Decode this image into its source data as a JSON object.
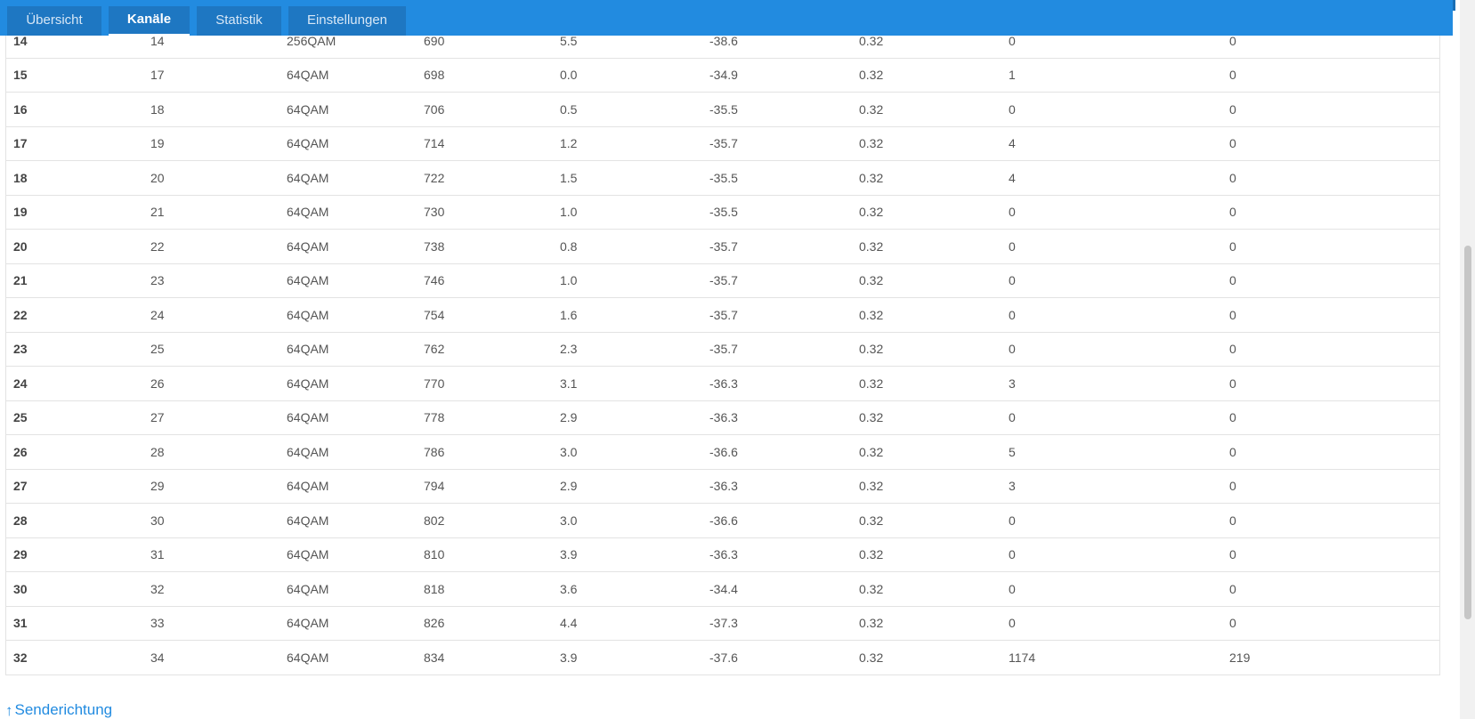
{
  "tabs": [
    {
      "label": "Übersicht",
      "active": false
    },
    {
      "label": "Kanäle",
      "active": true
    },
    {
      "label": "Statistik",
      "active": false
    },
    {
      "label": "Einstellungen",
      "active": false
    }
  ],
  "colors": {
    "topbar": "#228be0",
    "tab_bg": "#1e77c2",
    "link": "#228be0",
    "row_border": "#e3e3e3"
  },
  "channels": [
    [
      "14",
      "14",
      "256QAM",
      "690",
      "5.5",
      "-38.6",
      "0.32",
      "0",
      "0"
    ],
    [
      "15",
      "17",
      "64QAM",
      "698",
      "0.0",
      "-34.9",
      "0.32",
      "1",
      "0"
    ],
    [
      "16",
      "18",
      "64QAM",
      "706",
      "0.5",
      "-35.5",
      "0.32",
      "0",
      "0"
    ],
    [
      "17",
      "19",
      "64QAM",
      "714",
      "1.2",
      "-35.7",
      "0.32",
      "4",
      "0"
    ],
    [
      "18",
      "20",
      "64QAM",
      "722",
      "1.5",
      "-35.5",
      "0.32",
      "4",
      "0"
    ],
    [
      "19",
      "21",
      "64QAM",
      "730",
      "1.0",
      "-35.5",
      "0.32",
      "0",
      "0"
    ],
    [
      "20",
      "22",
      "64QAM",
      "738",
      "0.8",
      "-35.7",
      "0.32",
      "0",
      "0"
    ],
    [
      "21",
      "23",
      "64QAM",
      "746",
      "1.0",
      "-35.7",
      "0.32",
      "0",
      "0"
    ],
    [
      "22",
      "24",
      "64QAM",
      "754",
      "1.6",
      "-35.7",
      "0.32",
      "0",
      "0"
    ],
    [
      "23",
      "25",
      "64QAM",
      "762",
      "2.3",
      "-35.7",
      "0.32",
      "0",
      "0"
    ],
    [
      "24",
      "26",
      "64QAM",
      "770",
      "3.1",
      "-36.3",
      "0.32",
      "3",
      "0"
    ],
    [
      "25",
      "27",
      "64QAM",
      "778",
      "2.9",
      "-36.3",
      "0.32",
      "0",
      "0"
    ],
    [
      "26",
      "28",
      "64QAM",
      "786",
      "3.0",
      "-36.6",
      "0.32",
      "5",
      "0"
    ],
    [
      "27",
      "29",
      "64QAM",
      "794",
      "2.9",
      "-36.3",
      "0.32",
      "3",
      "0"
    ],
    [
      "28",
      "30",
      "64QAM",
      "802",
      "3.0",
      "-36.6",
      "0.32",
      "0",
      "0"
    ],
    [
      "29",
      "31",
      "64QAM",
      "810",
      "3.9",
      "-36.3",
      "0.32",
      "0",
      "0"
    ],
    [
      "30",
      "32",
      "64QAM",
      "818",
      "3.6",
      "-34.4",
      "0.32",
      "0",
      "0"
    ],
    [
      "31",
      "33",
      "64QAM",
      "826",
      "4.4",
      "-37.3",
      "0.32",
      "0",
      "0"
    ],
    [
      "32",
      "34",
      "64QAM",
      "834",
      "3.9",
      "-37.6",
      "0.32",
      "1174",
      "219"
    ]
  ],
  "upstream_link": {
    "icon": "arrow-up-icon",
    "arrow": "↑",
    "label": "Senderichtung"
  }
}
